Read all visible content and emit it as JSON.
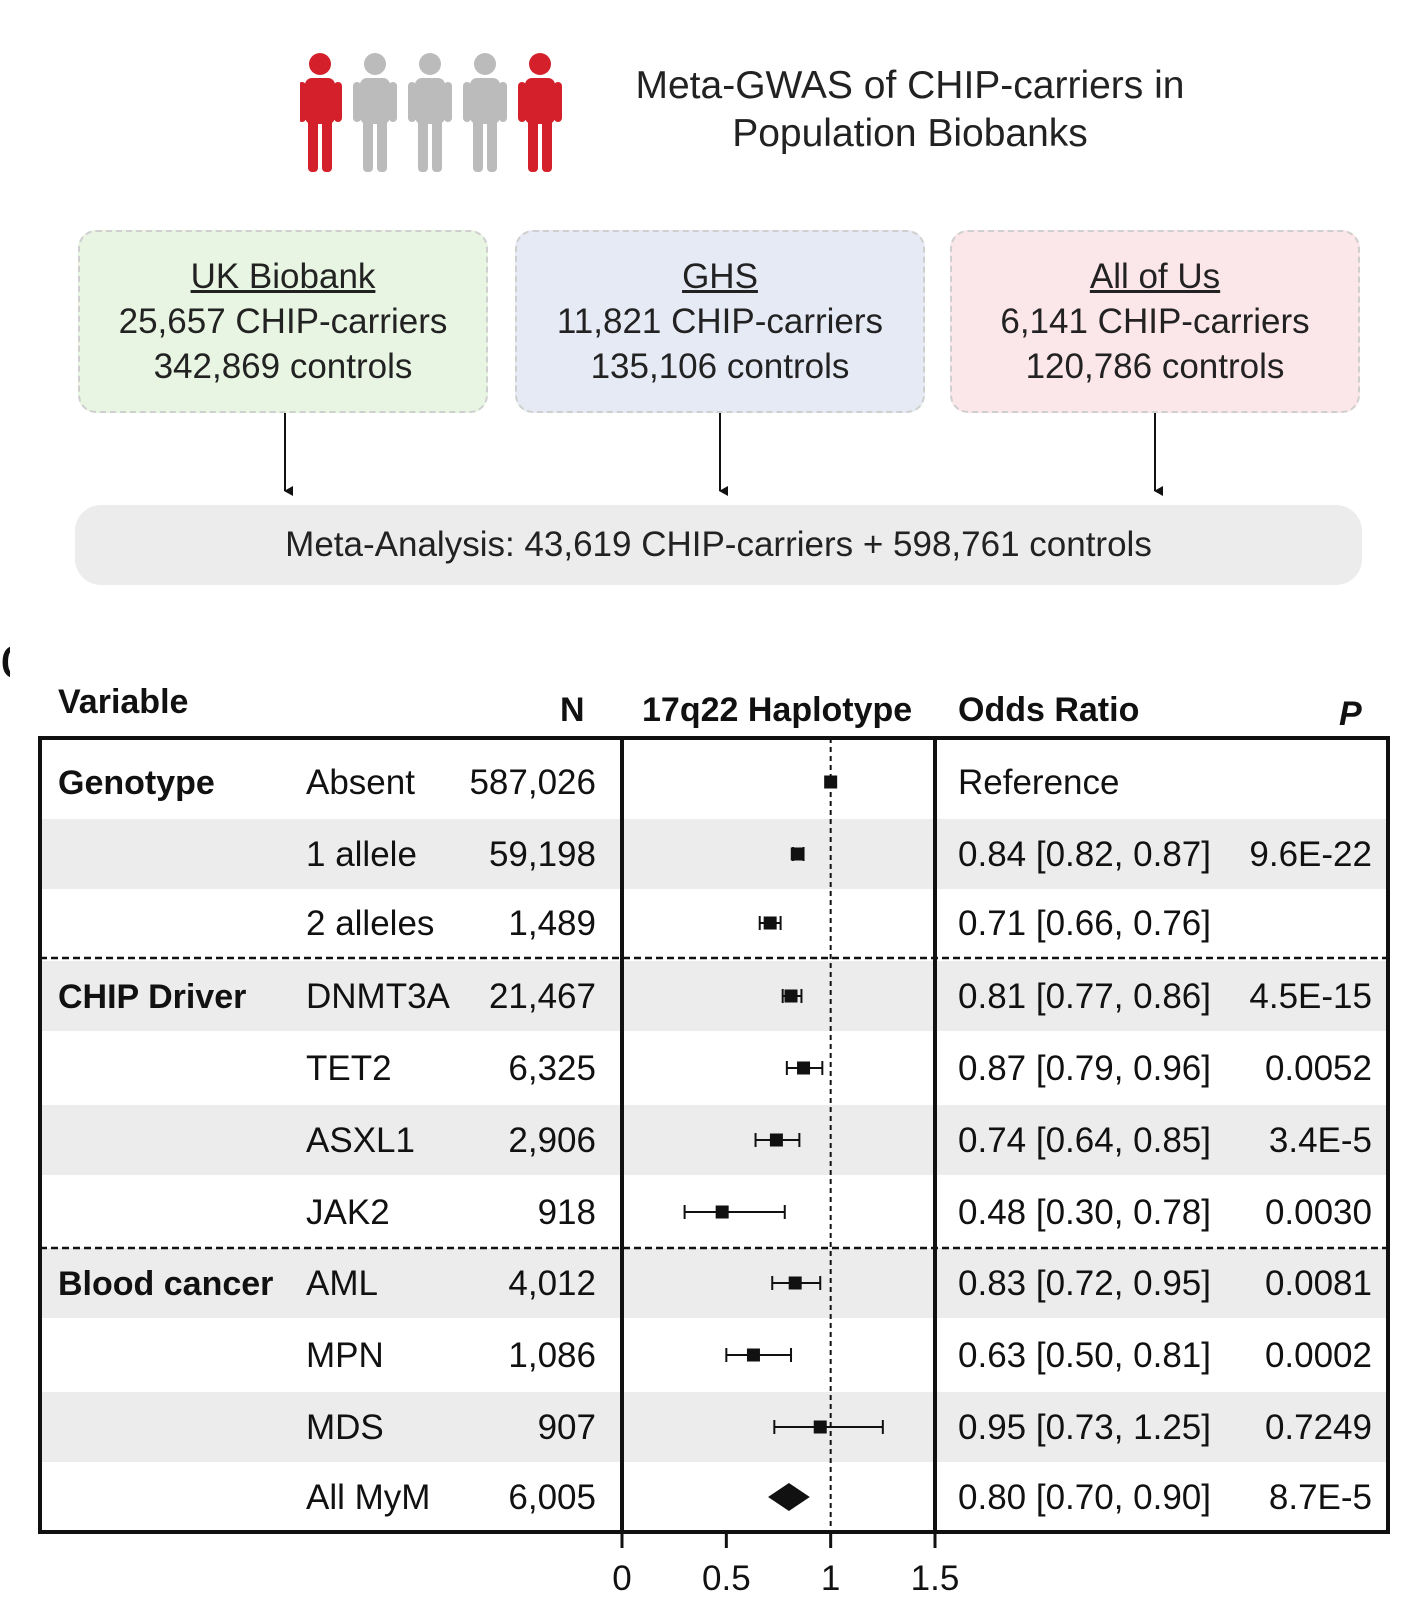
{
  "header": {
    "title_line1": "Meta-GWAS of CHIP-carriers in",
    "title_line2": "Population Biobanks"
  },
  "people_icon": {
    "name": "people-icon",
    "colors": [
      "#d4202a",
      "#bbbbbb",
      "#bbbbbb",
      "#bbbbbb",
      "#d4202a"
    ]
  },
  "cohorts": [
    {
      "name": "UK Biobank",
      "carriers": "25,657 CHIP-carriers",
      "controls": "342,869 controls",
      "color": "#e8f5e3"
    },
    {
      "name": "GHS",
      "carriers": "11,821 CHIP-carriers",
      "controls": "135,106 controls",
      "color": "#e6eaf5"
    },
    {
      "name": "All of Us",
      "carriers": "6,141 CHIP-carriers",
      "controls": "120,786 controls",
      "color": "#fbe6ea"
    }
  ],
  "meta": {
    "label": "Meta-Analysis: 43,619 CHIP-carriers + 598,761 controls"
  },
  "panel_letter": "c",
  "table_headers": {
    "variable": "Variable",
    "n": "N",
    "plot": "17q22 Haplotype",
    "or": "Odds Ratio",
    "p": "P"
  },
  "chart_data": {
    "type": "forest",
    "title": "17q22 Haplotype",
    "xlabel": "",
    "xlim": [
      0,
      1.5
    ],
    "xticks": [
      "0",
      "0.5",
      "1",
      "1.5"
    ],
    "reference_line": 1,
    "groups": [
      {
        "name": "Genotype",
        "rows": [
          {
            "label": "Absent",
            "n": "587,026",
            "or": 1.0,
            "lo": 1.0,
            "hi": 1.0,
            "or_text": "Reference",
            "p": ""
          },
          {
            "label": "1 allele",
            "n": "59,198",
            "or": 0.84,
            "lo": 0.82,
            "hi": 0.87,
            "or_text": "0.84 [0.82, 0.87]",
            "p": "9.6E-22"
          },
          {
            "label": "2 alleles",
            "n": "1,489",
            "or": 0.71,
            "lo": 0.66,
            "hi": 0.76,
            "or_text": "0.71 [0.66, 0.76]",
            "p": ""
          }
        ]
      },
      {
        "name": "CHIP Driver",
        "rows": [
          {
            "label": "DNMT3A",
            "n": "21,467",
            "or": 0.81,
            "lo": 0.77,
            "hi": 0.86,
            "or_text": "0.81 [0.77, 0.86]",
            "p": "4.5E-15"
          },
          {
            "label": "TET2",
            "n": "6,325",
            "or": 0.87,
            "lo": 0.79,
            "hi": 0.96,
            "or_text": "0.87 [0.79, 0.96]",
            "p": "0.0052"
          },
          {
            "label": "ASXL1",
            "n": "2,906",
            "or": 0.74,
            "lo": 0.64,
            "hi": 0.85,
            "or_text": "0.74 [0.64, 0.85]",
            "p": "3.4E-5"
          },
          {
            "label": "JAK2",
            "n": "918",
            "or": 0.48,
            "lo": 0.3,
            "hi": 0.78,
            "or_text": "0.48 [0.30, 0.78]",
            "p": "0.0030"
          }
        ]
      },
      {
        "name": "Blood cancer",
        "rows": [
          {
            "label": "AML",
            "n": "4,012",
            "or": 0.83,
            "lo": 0.72,
            "hi": 0.95,
            "or_text": "0.83 [0.72, 0.95]",
            "p": "0.0081"
          },
          {
            "label": "MPN",
            "n": "1,086",
            "or": 0.63,
            "lo": 0.5,
            "hi": 0.81,
            "or_text": "0.63 [0.50, 0.81]",
            "p": "0.0002"
          },
          {
            "label": "MDS",
            "n": "907",
            "or": 0.95,
            "lo": 0.73,
            "hi": 1.25,
            "or_text": "0.95 [0.73, 1.25]",
            "p": "0.7249"
          },
          {
            "label": "All MyM",
            "n": "6,005",
            "or": 0.8,
            "lo": 0.7,
            "hi": 0.9,
            "or_text": "0.80 [0.70, 0.90]",
            "p": "8.7E-5",
            "summary": true
          }
        ]
      }
    ]
  }
}
